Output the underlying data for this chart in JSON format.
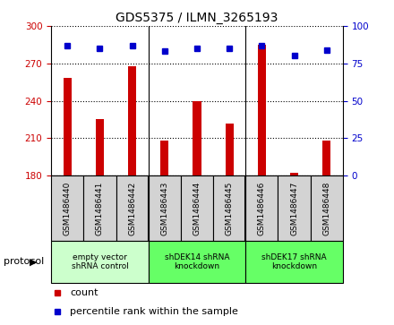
{
  "title": "GDS5375 / ILMN_3265193",
  "samples": [
    "GSM1486440",
    "GSM1486441",
    "GSM1486442",
    "GSM1486443",
    "GSM1486444",
    "GSM1486445",
    "GSM1486446",
    "GSM1486447",
    "GSM1486448"
  ],
  "counts": [
    258,
    225,
    268,
    208,
    240,
    222,
    285,
    182,
    208
  ],
  "percentiles": [
    87,
    85,
    87,
    83,
    85,
    85,
    87,
    80,
    84
  ],
  "ylim_left": [
    180,
    300
  ],
  "ylim_right": [
    0,
    100
  ],
  "yticks_left": [
    180,
    210,
    240,
    270,
    300
  ],
  "yticks_right": [
    0,
    25,
    50,
    75,
    100
  ],
  "group_labels": [
    "empty vector\nshRNA control",
    "shDEK14 shRNA\nknockdown",
    "shDEK17 shRNA\nknockdown"
  ],
  "group_colors": [
    "#ccffcc",
    "#66ff66",
    "#66ff66"
  ],
  "bar_color": "#CC0000",
  "dot_color": "#0000CC",
  "sample_bg_color": "#D3D3D3",
  "plot_bg_color": "#FFFFFF",
  "left_tick_color": "#CC0000",
  "right_tick_color": "#0000CC",
  "title_fontsize": 10,
  "tick_fontsize": 7.5,
  "bar_width": 0.25
}
